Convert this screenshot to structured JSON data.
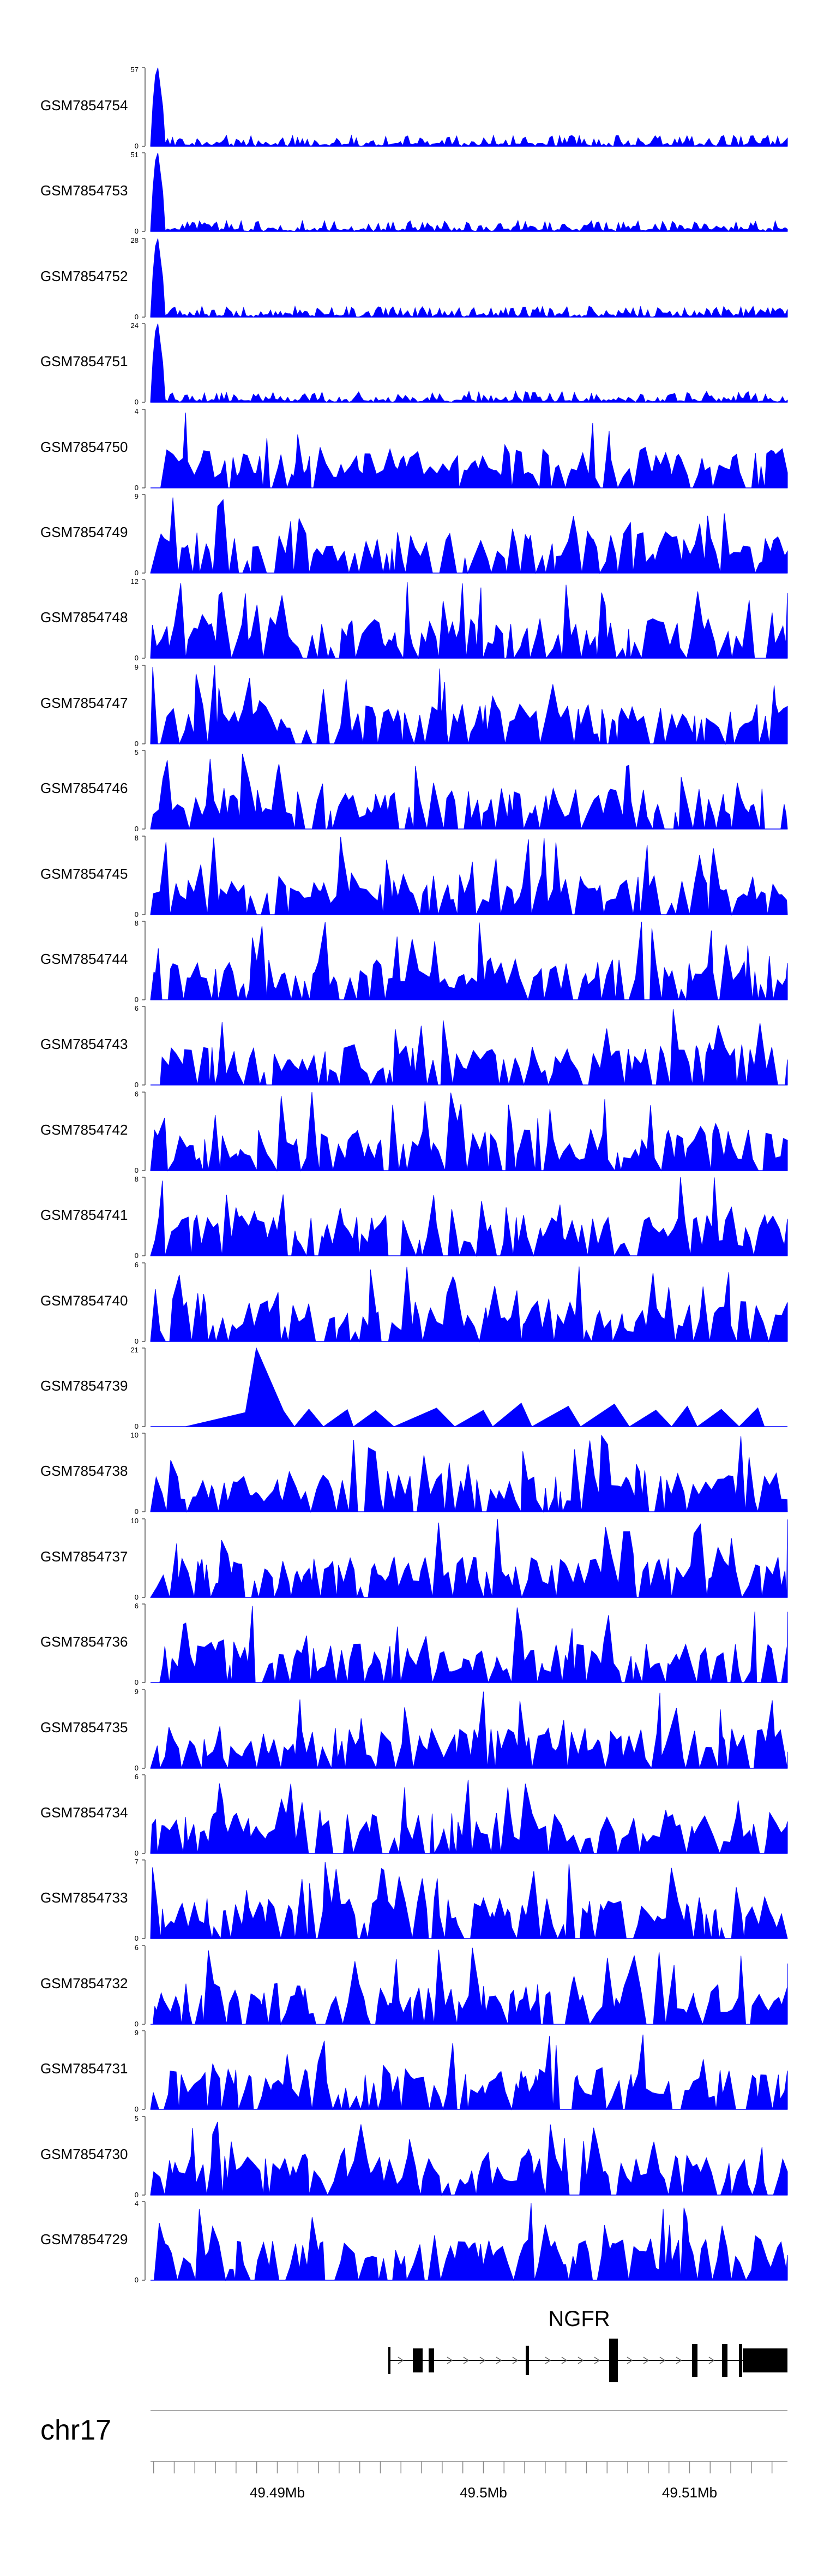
{
  "chart_data": {
    "type": "area",
    "chromosome": "chr17",
    "gene": "NGFR",
    "x_axis_tick_labels": [
      "49.49Mb",
      "49.5Mb",
      "49.51Mb"
    ],
    "x_tick_values_mb": [
      49.49,
      49.5,
      49.51
    ],
    "xlim_mb": [
      49.48385,
      49.51475
    ],
    "fill_color": "#0000ff",
    "tracks": [
      {
        "name": "GSM7854754",
        "ymax": 57
      },
      {
        "name": "GSM7854753",
        "ymax": 51
      },
      {
        "name": "GSM7854752",
        "ymax": 28
      },
      {
        "name": "GSM7854751",
        "ymax": 24
      },
      {
        "name": "GSM7854750",
        "ymax": 4
      },
      {
        "name": "GSM7854749",
        "ymax": 9
      },
      {
        "name": "GSM7854748",
        "ymax": 12
      },
      {
        "name": "GSM7854747",
        "ymax": 9
      },
      {
        "name": "GSM7854746",
        "ymax": 5
      },
      {
        "name": "GSM7854745",
        "ymax": 8
      },
      {
        "name": "GSM7854744",
        "ymax": 8
      },
      {
        "name": "GSM7854743",
        "ymax": 6
      },
      {
        "name": "GSM7854742",
        "ymax": 6
      },
      {
        "name": "GSM7854741",
        "ymax": 8
      },
      {
        "name": "GSM7854740",
        "ymax": 6
      },
      {
        "name": "GSM7854739",
        "ymax": 21
      },
      {
        "name": "GSM7854738",
        "ymax": 10
      },
      {
        "name": "GSM7854737",
        "ymax": 10
      },
      {
        "name": "GSM7854736",
        "ymax": 6
      },
      {
        "name": "GSM7854735",
        "ymax": 9
      },
      {
        "name": "GSM7854734",
        "ymax": 6
      },
      {
        "name": "GSM7854733",
        "ymax": 7
      },
      {
        "name": "GSM7854732",
        "ymax": 6
      },
      {
        "name": "GSM7854731",
        "ymax": 9
      },
      {
        "name": "GSM7854730",
        "ymax": 5
      },
      {
        "name": "GSM7854729",
        "ymax": 4
      }
    ]
  }
}
